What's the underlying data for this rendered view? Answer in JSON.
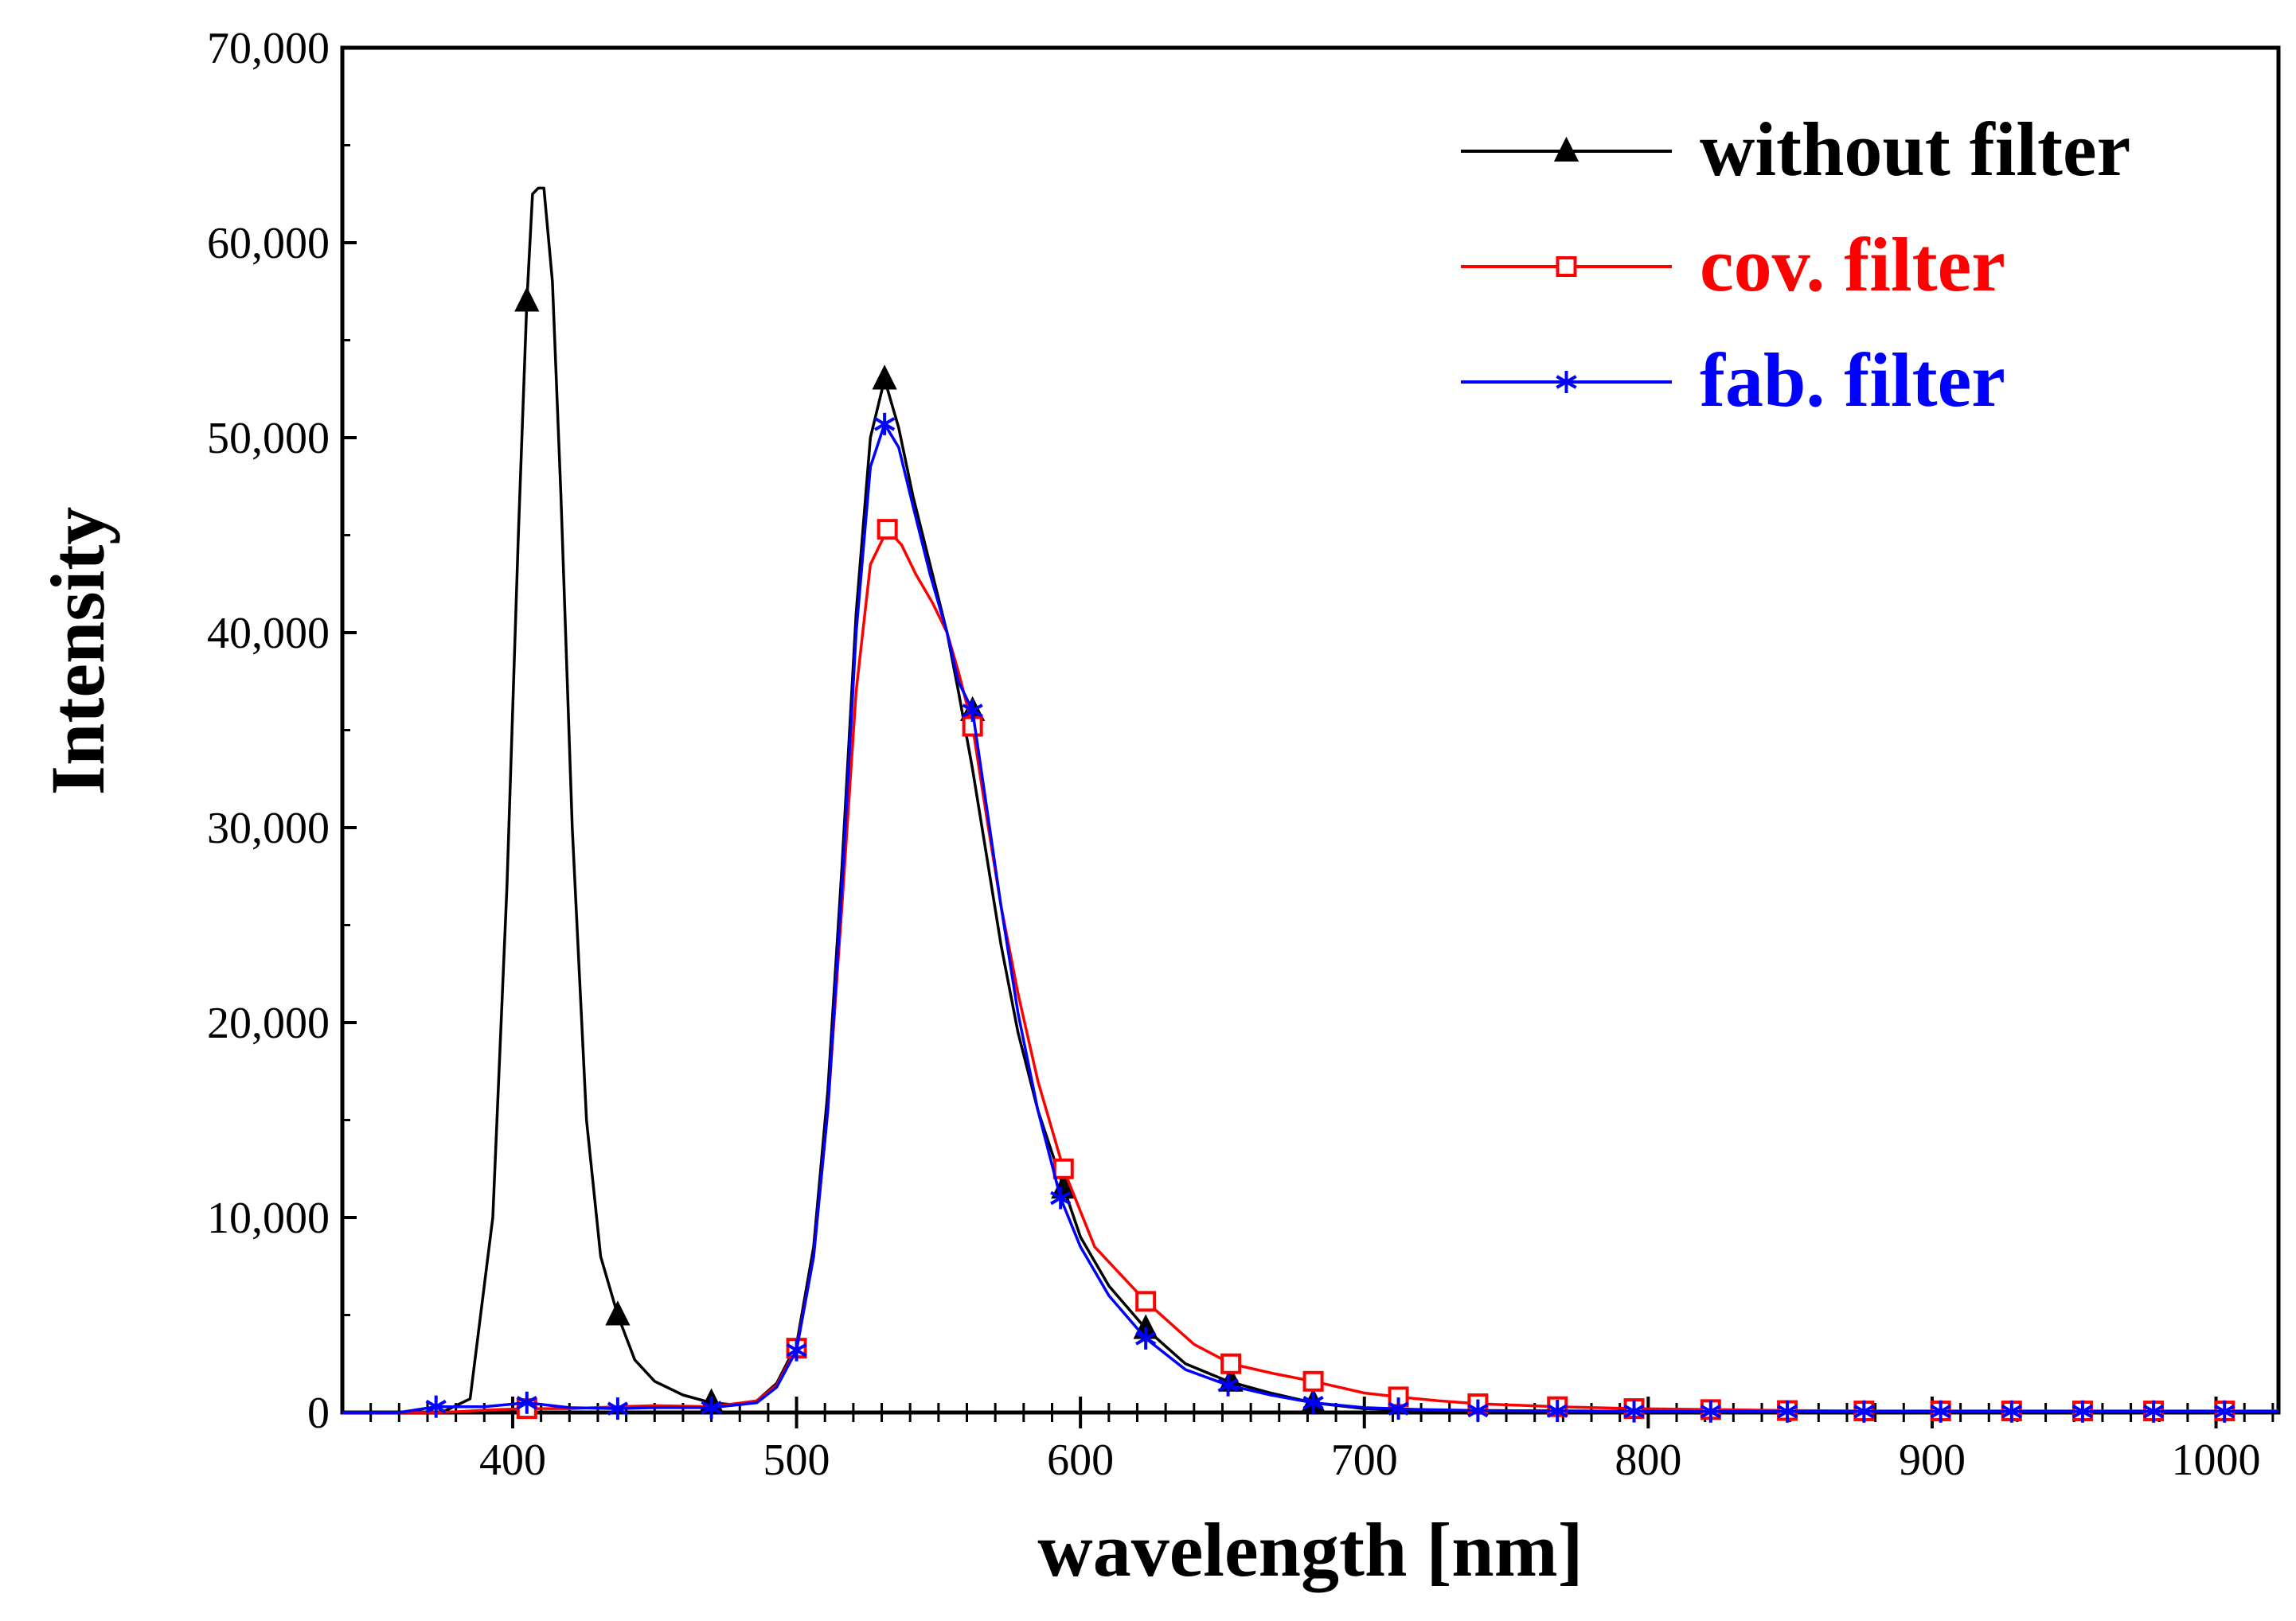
{
  "chart_data": {
    "type": "line",
    "title": "",
    "xlabel": "wavelength [nm]",
    "ylabel": "Intensity",
    "xlim": [
      340,
      1022
    ],
    "ylim": [
      0,
      70000
    ],
    "x_ticks": [
      400,
      500,
      600,
      700,
      800,
      900,
      1000
    ],
    "x_tick_labels": [
      "400",
      "500",
      "600",
      "700",
      "800",
      "900",
      "1000"
    ],
    "y_ticks": [
      0,
      10000,
      20000,
      30000,
      40000,
      50000,
      60000,
      70000
    ],
    "y_tick_labels": [
      "0",
      "10,000",
      "20,000",
      "30,000",
      "40,000",
      "50,000",
      "60,000",
      "70,000"
    ],
    "grid": false,
    "legend_position": "top-right",
    "series": [
      {
        "name": "without filter",
        "color": "#000000",
        "marker": "filled-triangle",
        "x": [
          340,
          360,
          375,
          385,
          393,
          398,
          402,
          405,
          407,
          409,
          411,
          414,
          417,
          421,
          426,
          431,
          437,
          443,
          450,
          460,
          470,
          478,
          486,
          493,
          500,
          506,
          511,
          516,
          521,
          526,
          531,
          536,
          541,
          547,
          553,
          557,
          562,
          567,
          572,
          578,
          585,
          593,
          600,
          610,
          623,
          637,
          652,
          667,
          682,
          700,
          720,
          740,
          768,
          795,
          822,
          849,
          876,
          903,
          928,
          953,
          978,
          1000,
          1022
        ],
        "y": [
          0,
          0,
          0,
          700,
          10000,
          27000,
          45000,
          57000,
          62500,
          62800,
          62800,
          58000,
          47000,
          30000,
          15000,
          8000,
          5000,
          2700,
          1600,
          900,
          500,
          400,
          600,
          1500,
          3500,
          8500,
          16500,
          28000,
          41000,
          50000,
          53000,
          50500,
          47000,
          43500,
          40000,
          37000,
          33000,
          28500,
          24000,
          19500,
          15500,
          12000,
          9000,
          6500,
          4300,
          2500,
          1600,
          1000,
          500,
          200,
          120,
          100,
          80,
          60,
          50,
          50,
          50,
          50,
          50,
          50,
          50,
          50,
          50
        ],
        "marker_x": [
          405,
          437,
          470,
          531,
          562,
          594,
          623,
          653,
          682
        ],
        "marker_y": [
          57000,
          5000,
          500,
          53000,
          36000,
          11500,
          4300,
          1600,
          500
        ]
      },
      {
        "name": "cov. filter",
        "color": "#ff0000",
        "marker": "open-square",
        "x": [
          340,
          375,
          395,
          405,
          420,
          437,
          450,
          470,
          486,
          493,
          500,
          506,
          511,
          516,
          521,
          526,
          532,
          537,
          542,
          548,
          553,
          557,
          562,
          567,
          572,
          578,
          585,
          594,
          605,
          623,
          640,
          653,
          668,
          682,
          700,
          712,
          726,
          740,
          768,
          795,
          822,
          849,
          876,
          903,
          928,
          953,
          978,
          1000,
          1022
        ],
        "y": [
          0,
          0,
          150,
          200,
          200,
          300,
          350,
          300,
          600,
          1400,
          3300,
          8000,
          15500,
          26000,
          37000,
          43500,
          45300,
          44500,
          43000,
          41500,
          40000,
          38000,
          35200,
          30500,
          26000,
          21500,
          17000,
          12500,
          8500,
          5700,
          3500,
          2500,
          2000,
          1600,
          1000,
          800,
          600,
          450,
          300,
          200,
          150,
          100,
          80,
          80,
          80,
          80,
          80,
          80,
          80
        ],
        "marker_x": [
          405,
          500,
          532,
          562,
          594,
          623,
          653,
          682,
          712,
          740,
          768,
          795,
          822,
          849,
          876,
          903,
          928,
          953,
          978,
          1003
        ],
        "marker_y": [
          200,
          3300,
          45300,
          35200,
          12500,
          5700,
          2500,
          1600,
          800,
          450,
          300,
          200,
          150,
          100,
          80,
          80,
          80,
          80,
          80,
          80
        ]
      },
      {
        "name": "fab. filter",
        "color": "#0000ff",
        "marker": "asterisk",
        "x": [
          340,
          360,
          373,
          390,
          405,
          420,
          437,
          450,
          470,
          486,
          493,
          500,
          506,
          511,
          516,
          521,
          526,
          531,
          536,
          541,
          547,
          553,
          557,
          562,
          567,
          572,
          578,
          585,
          593,
          600,
          610,
          623,
          637,
          652,
          667,
          682,
          700,
          720,
          740,
          768,
          795,
          822,
          849,
          876,
          903,
          928,
          953,
          978,
          1000,
          1022
        ],
        "y": [
          0,
          0,
          300,
          300,
          500,
          250,
          200,
          250,
          250,
          500,
          1300,
          3200,
          8000,
          15500,
          27000,
          40000,
          48500,
          50700,
          49500,
          46500,
          43000,
          40000,
          37500,
          36000,
          31000,
          26000,
          20500,
          15500,
          11000,
          8500,
          6000,
          3800,
          2200,
          1400,
          900,
          500,
          250,
          150,
          100,
          80,
          60,
          50,
          50,
          50,
          50,
          50,
          50,
          50,
          50,
          50
        ],
        "marker_x": [
          373,
          405,
          437,
          470,
          500,
          531,
          562,
          593,
          623,
          652,
          682,
          712,
          740,
          768,
          795,
          822,
          849,
          876,
          903,
          928,
          953,
          978,
          1003
        ],
        "marker_y": [
          300,
          500,
          200,
          250,
          3200,
          50700,
          36000,
          11000,
          3800,
          1400,
          500,
          200,
          100,
          80,
          60,
          50,
          50,
          50,
          50,
          50,
          50,
          50,
          50
        ]
      }
    ]
  }
}
